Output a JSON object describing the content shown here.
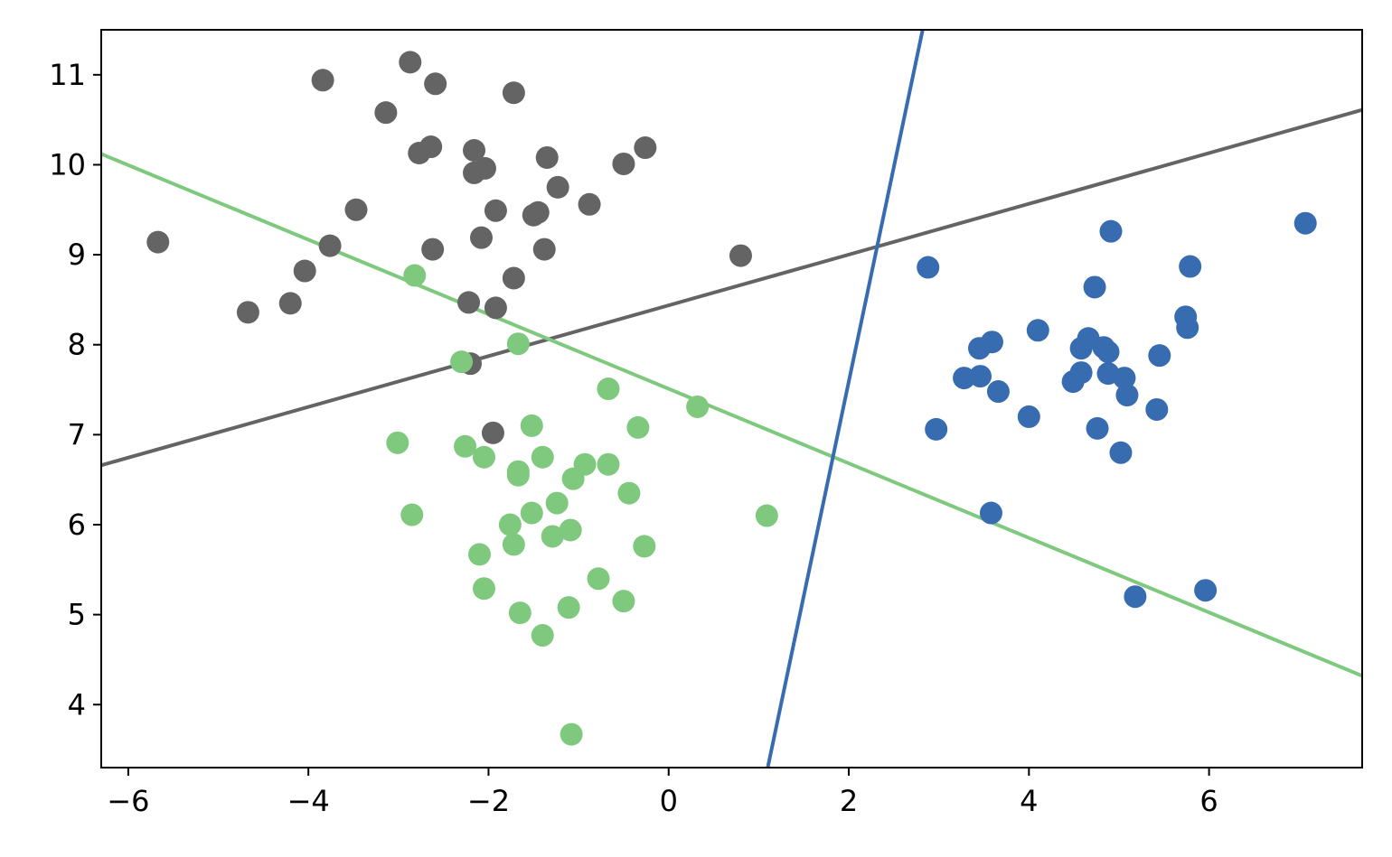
{
  "chart_data": {
    "type": "scatter",
    "title": "",
    "xlabel": "",
    "ylabel": "",
    "xlim": [
      -6.3,
      7.7
    ],
    "ylim": [
      3.3,
      11.5
    ],
    "x_ticks": [
      -6,
      -4,
      -2,
      0,
      2,
      4,
      6
    ],
    "x_tick_labels": [
      "−6",
      "−4",
      "−2",
      "0",
      "2",
      "4",
      "6"
    ],
    "y_ticks": [
      4,
      5,
      6,
      7,
      8,
      9,
      10,
      11
    ],
    "y_tick_labels": [
      "4",
      "5",
      "6",
      "7",
      "8",
      "9",
      "10",
      "11"
    ],
    "grid": false,
    "legend": "none",
    "series": [
      {
        "color": "#646464",
        "points": [
          [
            -5.67,
            9.14
          ],
          [
            -4.67,
            8.36
          ],
          [
            -4.2,
            8.46
          ],
          [
            -4.04,
            8.82
          ],
          [
            -3.84,
            10.94
          ],
          [
            -3.76,
            9.1
          ],
          [
            -3.47,
            9.5
          ],
          [
            -3.14,
            10.58
          ],
          [
            -2.87,
            11.14
          ],
          [
            -2.77,
            10.13
          ],
          [
            -2.64,
            10.2
          ],
          [
            -2.62,
            9.06
          ],
          [
            -2.59,
            10.9
          ],
          [
            -2.22,
            8.47
          ],
          [
            -2.2,
            7.79
          ],
          [
            -2.16,
            10.16
          ],
          [
            -2.16,
            9.91
          ],
          [
            -2.04,
            9.96
          ],
          [
            -2.08,
            9.19
          ],
          [
            -1.92,
            9.49
          ],
          [
            -1.92,
            8.41
          ],
          [
            -1.95,
            7.02
          ],
          [
            -1.72,
            10.8
          ],
          [
            -1.72,
            8.74
          ],
          [
            -1.5,
            9.44
          ],
          [
            -1.45,
            9.47
          ],
          [
            -1.38,
            9.06
          ],
          [
            -1.35,
            10.08
          ],
          [
            -1.23,
            9.75
          ],
          [
            -0.88,
            9.56
          ],
          [
            -0.5,
            10.01
          ],
          [
            -0.26,
            10.19
          ],
          [
            0.8,
            8.99
          ]
        ]
      },
      {
        "color": "#7fc97f",
        "points": [
          [
            -2.82,
            8.77
          ],
          [
            -2.3,
            7.81
          ],
          [
            -1.67,
            8.01
          ],
          [
            -3.01,
            6.91
          ],
          [
            -2.85,
            6.11
          ],
          [
            -2.26,
            6.87
          ],
          [
            -2.05,
            6.75
          ],
          [
            -2.1,
            5.67
          ],
          [
            -2.05,
            5.29
          ],
          [
            -1.76,
            6.0
          ],
          [
            -1.72,
            5.78
          ],
          [
            -1.67,
            6.59
          ],
          [
            -1.67,
            6.55
          ],
          [
            -1.65,
            5.02
          ],
          [
            -1.52,
            7.1
          ],
          [
            -1.52,
            6.13
          ],
          [
            -1.4,
            6.75
          ],
          [
            -1.4,
            4.77
          ],
          [
            -1.29,
            5.87
          ],
          [
            -1.24,
            6.24
          ],
          [
            -1.11,
            5.08
          ],
          [
            -1.09,
            5.94
          ],
          [
            -1.06,
            6.51
          ],
          [
            -1.08,
            3.67
          ],
          [
            -0.93,
            6.67
          ],
          [
            -0.67,
            6.67
          ],
          [
            -0.67,
            7.51
          ],
          [
            -0.78,
            5.4
          ],
          [
            -0.5,
            5.15
          ],
          [
            -0.44,
            6.35
          ],
          [
            -0.34,
            7.08
          ],
          [
            -0.27,
            5.76
          ],
          [
            0.32,
            7.31
          ],
          [
            1.09,
            6.1
          ]
        ]
      },
      {
        "color": "#386cb0",
        "points": [
          [
            2.88,
            8.86
          ],
          [
            2.97,
            7.06
          ],
          [
            3.28,
            7.63
          ],
          [
            3.45,
            7.96
          ],
          [
            3.46,
            7.65
          ],
          [
            3.59,
            8.03
          ],
          [
            3.58,
            6.13
          ],
          [
            3.66,
            7.48
          ],
          [
            4.0,
            7.2
          ],
          [
            4.1,
            8.16
          ],
          [
            4.49,
            7.59
          ],
          [
            4.58,
            7.96
          ],
          [
            4.58,
            7.69
          ],
          [
            4.66,
            8.07
          ],
          [
            4.73,
            8.64
          ],
          [
            4.76,
            7.07
          ],
          [
            4.83,
            7.97
          ],
          [
            4.88,
            7.92
          ],
          [
            4.88,
            7.68
          ],
          [
            4.91,
            9.26
          ],
          [
            5.02,
            6.8
          ],
          [
            5.06,
            7.63
          ],
          [
            5.09,
            7.44
          ],
          [
            5.18,
            5.2
          ],
          [
            5.42,
            7.28
          ],
          [
            5.45,
            7.88
          ],
          [
            5.74,
            8.31
          ],
          [
            5.76,
            8.19
          ],
          [
            5.79,
            8.87
          ],
          [
            5.96,
            5.27
          ],
          [
            7.07,
            9.35
          ]
        ]
      }
    ],
    "lines": [
      {
        "color": "#646464",
        "x": [
          -6.3,
          7.7
        ],
        "y": [
          6.66,
          10.61
        ]
      },
      {
        "color": "#7fc97f",
        "x": [
          -6.3,
          7.7
        ],
        "y": [
          10.12,
          4.32
        ]
      },
      {
        "color": "#386cb0",
        "x": [
          1.1,
          2.82
        ],
        "y": [
          3.3,
          11.5
        ]
      }
    ]
  }
}
